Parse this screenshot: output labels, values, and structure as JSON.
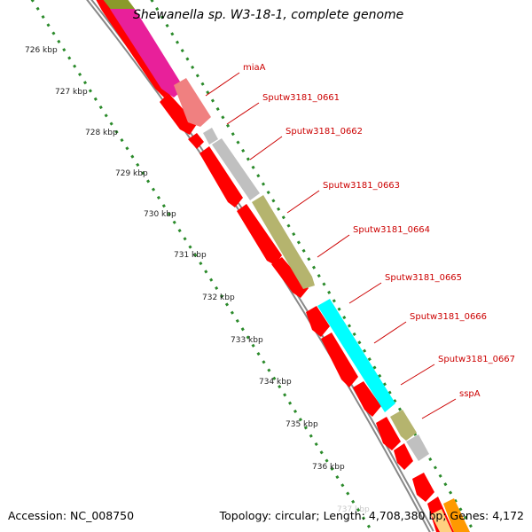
{
  "header": {
    "title": "Shewanella sp. W3-18-1, complete genome"
  },
  "footer": {
    "accession": "Accession: NC_008750",
    "summary": "Topology: circular; Length: 4,708,380 bp; Genes: 4,172"
  },
  "ticks": [
    {
      "label": "726 kbp"
    },
    {
      "label": "727 kbp"
    },
    {
      "label": "728 kbp"
    },
    {
      "label": "729 kbp"
    },
    {
      "label": "730 kbp"
    },
    {
      "label": "731 kbp"
    },
    {
      "label": "732 kbp"
    },
    {
      "label": "733 kbp"
    },
    {
      "label": "734 kbp"
    },
    {
      "label": "735 kbp"
    },
    {
      "label": "736 kbp"
    },
    {
      "label": "737 kbp"
    }
  ],
  "genes": [
    {
      "label": "miaA",
      "color": "#f08080"
    },
    {
      "label": "Sputw3181_0661",
      "color": "#c0c0c0"
    },
    {
      "label": "Sputw3181_0662",
      "color": "#c0c0c0"
    },
    {
      "label": "Sputw3181_0663",
      "color": "#b5b46e"
    },
    {
      "label": "Sputw3181_0664",
      "color": "#b5b46e"
    },
    {
      "label": "Sputw3181_0665",
      "color": "#00ffff"
    },
    {
      "label": "Sputw3181_0666",
      "color": "#00ffff"
    },
    {
      "label": "Sputw3181_0667",
      "color": "#b5b46e"
    },
    {
      "label": "sspA",
      "color": "#c0c0c0"
    }
  ],
  "colors": {
    "cds": "#ff0000",
    "backbone": "#888888",
    "tick_dots": "#2a8a2a",
    "label_text": "#cc0000",
    "magenta_gene": "#e8209a",
    "olive_gene": "#8a9a2a",
    "orange_gene": "#ff9900"
  }
}
